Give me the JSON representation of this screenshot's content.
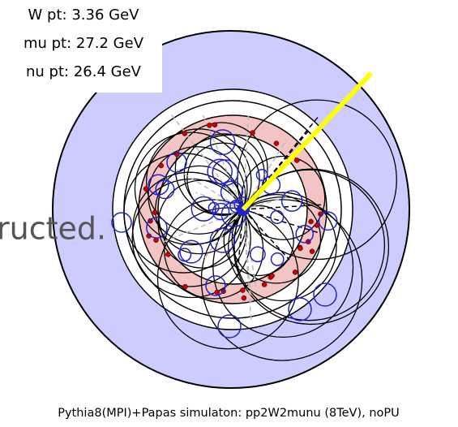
{
  "info_box": {
    "lines": [
      "W pt: 3.36 GeV",
      "mu pt: 27.2 GeV",
      "nu pt: 26.4 GeV"
    ]
  },
  "overlay_text": "ructed.",
  "caption": "Pythia8(MPI)+Papas simulaton: pp2W2munu (8TeV), noPU"
}
